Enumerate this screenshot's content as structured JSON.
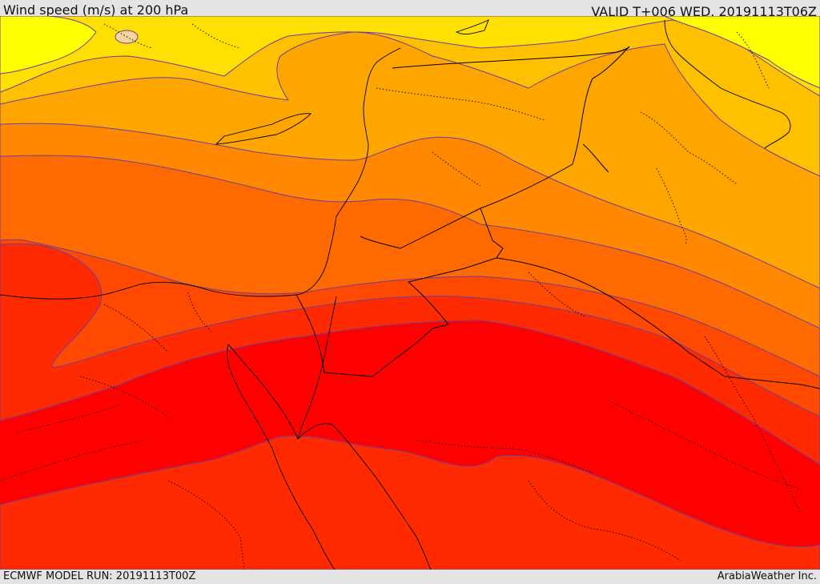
{
  "header": {
    "title": "Wind speed (m/s) at 200 hPa",
    "valid": "VALID T+006 WED. 20191113T06Z"
  },
  "footer": {
    "model_run": "ECMWF MODEL RUN: 20191113T00Z",
    "credit": "ArabiaWeather Inc."
  },
  "colors": {
    "band_1": "#ffff00",
    "band_2": "#ffe000",
    "band_3": "#ffc000",
    "band_4": "#ffa500",
    "band_5": "#ff8800",
    "band_6": "#ff6a00",
    "band_7": "#ff4800",
    "band_8": "#ff2a00",
    "band_9": "#ff0000",
    "contour_line": "#6a3fa0",
    "border_line": "#000000"
  }
}
